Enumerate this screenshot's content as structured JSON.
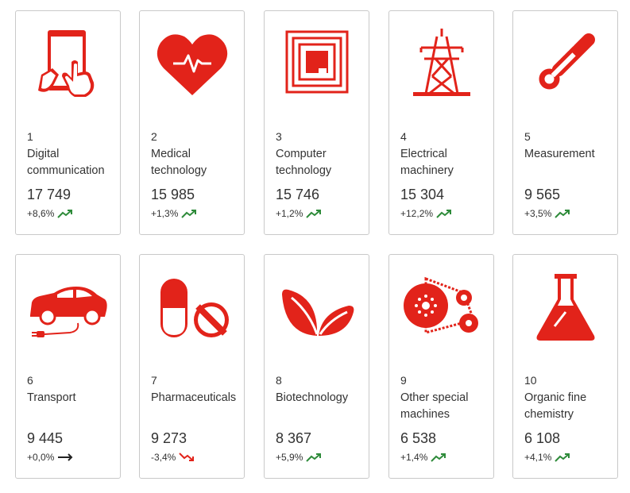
{
  "accent_color": "#e2231a",
  "trend_colors": {
    "up": "#2e8b3a",
    "down": "#e2231a",
    "flat": "#222222"
  },
  "cards": [
    {
      "rank": "1",
      "name": "Digital communication",
      "count": "17 749",
      "change": "+8,6%",
      "trend": "up",
      "icon": "tablet-touch-icon"
    },
    {
      "rank": "2",
      "name": "Medical technology",
      "count": "15 985",
      "change": "+1,3%",
      "trend": "up",
      "icon": "heartbeat-icon"
    },
    {
      "rank": "3",
      "name": "Computer technology",
      "count": "15 746",
      "change": "+1,2%",
      "trend": "up",
      "icon": "chip-icon"
    },
    {
      "rank": "4",
      "name": "Electrical machinery",
      "count": "15 304",
      "change": "+12,2%",
      "trend": "up",
      "icon": "power-pylon-icon"
    },
    {
      "rank": "5",
      "name": "Measurement",
      "count": "9 565",
      "change": "+3,5%",
      "trend": "up",
      "icon": "thermometer-icon"
    },
    {
      "rank": "6",
      "name": "Transport",
      "count": "9 445",
      "change": "+0,0%",
      "trend": "flat",
      "icon": "electric-car-icon"
    },
    {
      "rank": "7",
      "name": "Pharmaceuticals",
      "count": "9 273",
      "change": "-3,4%",
      "trend": "down",
      "icon": "pills-icon"
    },
    {
      "rank": "8",
      "name": "Biotechnology",
      "count": "8 367",
      "change": "+5,9%",
      "trend": "up",
      "icon": "leaves-icon"
    },
    {
      "rank": "9",
      "name": "Other special machines",
      "count": "6 538",
      "change": "+1,4%",
      "trend": "up",
      "icon": "belt-machine-icon"
    },
    {
      "rank": "10",
      "name": "Organic fine chemistry",
      "count": "6 108",
      "change": "+4,1%",
      "trend": "up",
      "icon": "flask-icon"
    }
  ]
}
